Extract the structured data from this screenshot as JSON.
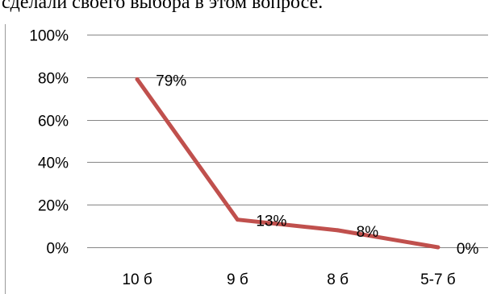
{
  "header_text": "сделали своего выбора  в этом вопросе.",
  "chart_data": {
    "type": "line",
    "categories": [
      "10 б",
      "9 б",
      "8 б",
      "5-7  б"
    ],
    "series": [
      {
        "values": [
          79,
          13,
          8,
          0
        ]
      }
    ],
    "data_labels": [
      "79%",
      "13%",
      "8%",
      "0%"
    ],
    "y_ticks": [
      "0%",
      "20%",
      "40%",
      "60%",
      "80%",
      "100%"
    ],
    "ylim": [
      0,
      100
    ],
    "grid": true,
    "line_color": "#c0504d",
    "grid_color": "#868686"
  }
}
